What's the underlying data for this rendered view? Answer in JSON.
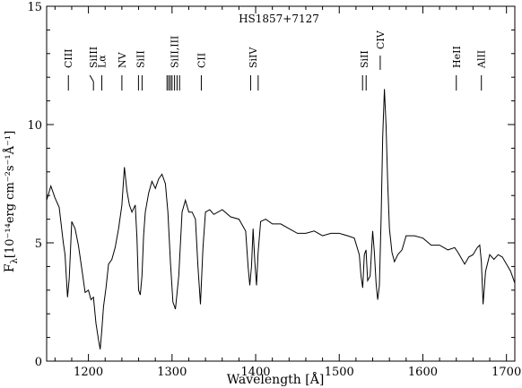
{
  "chart_data": {
    "type": "line",
    "title": "HS1857+7127",
    "xlabel": "Wavelength [Å]",
    "ylabel": "F",
    "ylabel_subscript": "λ",
    "ylabel_unit": "[10⁻¹⁴erg cm⁻²s⁻¹Å⁻¹]",
    "xlim": [
      1150,
      1710
    ],
    "ylim": [
      0,
      15
    ],
    "xticks": [
      1200,
      1300,
      1400,
      1500,
      1600,
      1700
    ],
    "yticks": [
      0,
      5,
      10,
      15
    ],
    "grid": false,
    "series": [
      {
        "x": [
          1150,
          1155,
          1160,
          1165,
          1170,
          1172,
          1175,
          1177,
          1180,
          1184,
          1188,
          1192,
          1196,
          1200,
          1203,
          1206,
          1209,
          1212,
          1214,
          1216,
          1218,
          1221,
          1224,
          1228,
          1232,
          1236,
          1240,
          1243,
          1246,
          1249,
          1252,
          1256,
          1258,
          1260,
          1262,
          1264,
          1266,
          1268,
          1272,
          1276,
          1280,
          1284,
          1288,
          1292,
          1295,
          1298,
          1301,
          1304,
          1308,
          1312,
          1316,
          1320,
          1324,
          1328,
          1331,
          1334,
          1337,
          1340,
          1345,
          1350,
          1360,
          1370,
          1380,
          1388,
          1391,
          1393,
          1395,
          1397,
          1399,
          1401,
          1403,
          1406,
          1412,
          1420,
          1430,
          1440,
          1450,
          1460,
          1470,
          1480,
          1490,
          1500,
          1510,
          1518,
          1524,
          1526,
          1528,
          1530,
          1532,
          1534,
          1537,
          1540,
          1542,
          1544,
          1546,
          1548,
          1550,
          1552,
          1554,
          1556,
          1558,
          1560,
          1563,
          1566,
          1570,
          1575,
          1580,
          1590,
          1600,
          1610,
          1620,
          1630,
          1638,
          1642,
          1650,
          1655,
          1660,
          1665,
          1668,
          1670,
          1672,
          1675,
          1680,
          1685,
          1690,
          1695,
          1700,
          1705,
          1710
        ],
        "y": [
          6.8,
          7.4,
          6.9,
          6.5,
          5.0,
          4.5,
          2.7,
          3.5,
          5.9,
          5.6,
          4.9,
          3.9,
          2.9,
          3.0,
          2.6,
          2.7,
          1.6,
          0.9,
          0.5,
          1.3,
          2.3,
          3.1,
          4.1,
          4.3,
          4.8,
          5.6,
          6.6,
          8.2,
          7.2,
          6.6,
          6.3,
          6.6,
          5.2,
          3.0,
          2.8,
          3.6,
          5.3,
          6.3,
          7.1,
          7.6,
          7.3,
          7.7,
          7.9,
          7.5,
          6.3,
          4.2,
          2.5,
          2.2,
          3.6,
          6.3,
          6.8,
          6.3,
          6.3,
          6.0,
          4.0,
          2.4,
          4.8,
          6.3,
          6.4,
          6.2,
          6.4,
          6.1,
          6.0,
          5.5,
          4.0,
          3.2,
          4.0,
          5.6,
          4.2,
          3.2,
          4.6,
          5.9,
          6.0,
          5.8,
          5.8,
          5.6,
          5.4,
          5.4,
          5.5,
          5.3,
          5.4,
          5.4,
          5.3,
          5.2,
          4.5,
          3.6,
          3.1,
          4.5,
          4.7,
          3.4,
          3.6,
          5.5,
          4.6,
          3.3,
          2.6,
          3.2,
          6.0,
          9.5,
          11.5,
          10.0,
          7.5,
          5.6,
          4.6,
          4.2,
          4.5,
          4.7,
          5.3,
          5.3,
          5.2,
          4.9,
          4.9,
          4.7,
          4.8,
          4.6,
          4.1,
          4.4,
          4.5,
          4.8,
          4.9,
          4.2,
          2.4,
          3.8,
          4.5,
          4.3,
          4.5,
          4.4,
          4.1,
          3.8,
          3.3
        ]
      }
    ],
    "line_labels": [
      {
        "text": "CIII",
        "x": 1176
      },
      {
        "text": "SiIII",
        "x": 1206
      },
      {
        "text": "Lα",
        "x": 1216
      },
      {
        "text": "NV",
        "x": 1240
      },
      {
        "text": "SiII",
        "x": 1262
      },
      {
        "text": "SiII,III",
        "x": 1303
      },
      {
        "text": "CII",
        "x": 1335
      },
      {
        "text": "SiIV",
        "x": 1397
      },
      {
        "text": "SiII",
        "x": 1530
      },
      {
        "text": "CIV",
        "x": 1549
      },
      {
        "text": "HeII",
        "x": 1640
      },
      {
        "text": "AlII",
        "x": 1670
      }
    ]
  }
}
